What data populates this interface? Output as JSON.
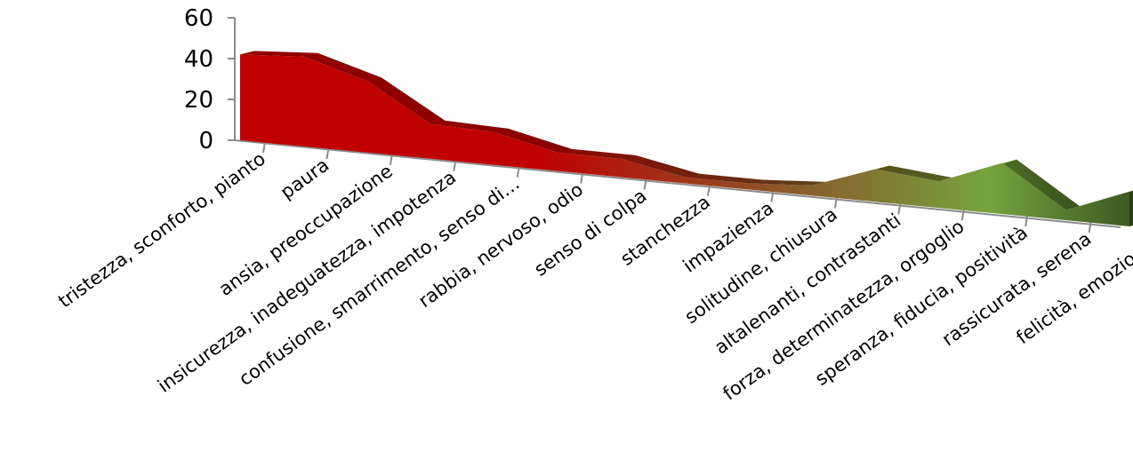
{
  "chart_data": {
    "type": "area",
    "categories": [
      "tristezza, sconforto, pianto",
      "paura",
      "ansia, preoccupazione",
      "insicurezza, inadeguatezza, impotenza",
      "confusione, smarrimento, senso di…",
      "rabbia, nervoso, odio",
      "senso di colpa",
      "stanchezza",
      "impazienza",
      "solitudine, chiusura",
      "altalenanti, contrastanti",
      "forza, determinatezza, orgoglio",
      "speranza, fiducia, positività",
      "rassicurata, serena",
      "felicità, emozione"
    ],
    "values": [
      42,
      44,
      35,
      17,
      16,
      9,
      9,
      3,
      3,
      5,
      16,
      13,
      25,
      5,
      17
    ],
    "yticks": [
      "60",
      "40",
      "20",
      "0"
    ],
    "ylim": [
      0,
      60
    ],
    "title": "",
    "xlabel": "",
    "ylabel": "",
    "legend": "none",
    "grid": false,
    "colors": {
      "start": "#c00000",
      "end": "#3e5a22",
      "mid_green": "#76a33e",
      "mid_brown": "#8a5a2a"
    }
  }
}
